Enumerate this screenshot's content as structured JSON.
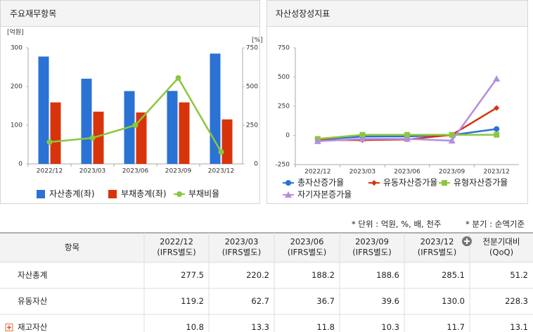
{
  "chart_data": [
    {
      "type": "bar",
      "title": "주요재무항목",
      "y_label": "[억원]",
      "y2_label": "[%]",
      "categories": [
        "2022/12",
        "2023/03",
        "2023/06",
        "2023/09",
        "2023/12"
      ],
      "series": [
        {
          "name": "자산총계(좌)",
          "color": "#2a72d4",
          "values": [
            277.5,
            220.2,
            188.2,
            188.6,
            285.1
          ]
        },
        {
          "name": "부채총계(좌)",
          "color": "#d8340c",
          "values": [
            159,
            135,
            133,
            159,
            115
          ]
        },
        {
          "name": "부채비율",
          "color": "#8cc63f",
          "type": "line",
          "axis": "y2",
          "marker": "circle",
          "values": [
            141,
            168,
            250,
            555,
            77
          ]
        }
      ],
      "ylim": [
        0,
        300
      ],
      "yticks": [
        0,
        100,
        200,
        300
      ],
      "y2lim": [
        0,
        750
      ],
      "y2ticks": [
        0,
        250,
        500,
        750
      ],
      "grid": false
    },
    {
      "type": "line",
      "title": "자산성장성지표",
      "categories": [
        "2022/12",
        "2023/03",
        "2023/06",
        "2023/09",
        "2023/12"
      ],
      "series": [
        {
          "name": "총자산증가율",
          "color": "#2a72d4",
          "marker": "circle",
          "values": [
            -35,
            -10,
            -8,
            3,
            55
          ]
        },
        {
          "name": "유동자산증가율",
          "color": "#d8340c",
          "marker": "diamond",
          "values": [
            -40,
            -40,
            -35,
            5,
            235
          ]
        },
        {
          "name": "유형자산증가율",
          "color": "#8cc63f",
          "marker": "square",
          "values": [
            -30,
            5,
            5,
            5,
            5
          ]
        },
        {
          "name": "자기자본증가율",
          "color": "#b38ee0",
          "marker": "triangle",
          "values": [
            -50,
            -30,
            -30,
            -45,
            485
          ]
        }
      ],
      "ylim": [
        -250,
        750
      ],
      "yticks": [
        -250,
        0,
        250,
        500,
        750
      ],
      "grid": false
    }
  ],
  "table": {
    "unit_note": "* 단위 : 억원, %, 배, 천주",
    "basis_note": "* 분기 : 순액기준",
    "item_header": "항목",
    "columns": [
      [
        "2022/12",
        "(IFRS별도)"
      ],
      [
        "2023/03",
        "(IFRS별도)"
      ],
      [
        "2023/06",
        "(IFRS별도)"
      ],
      [
        "2023/09",
        "(IFRS별도)"
      ],
      [
        "2023/12",
        "(IFRS별도)"
      ],
      [
        "전분기대비",
        "(QoQ)"
      ]
    ],
    "rows": [
      [
        "자산총계",
        "277.5",
        "220.2",
        "188.2",
        "188.6",
        "285.1",
        "51.2"
      ],
      [
        "유동자산",
        "119.2",
        "62.7",
        "36.7",
        "39.6",
        "130.0",
        "228.3"
      ],
      [
        "재고자산",
        "10.8",
        "13.3",
        "11.8",
        "10.3",
        "11.7",
        "13.1"
      ]
    ]
  }
}
